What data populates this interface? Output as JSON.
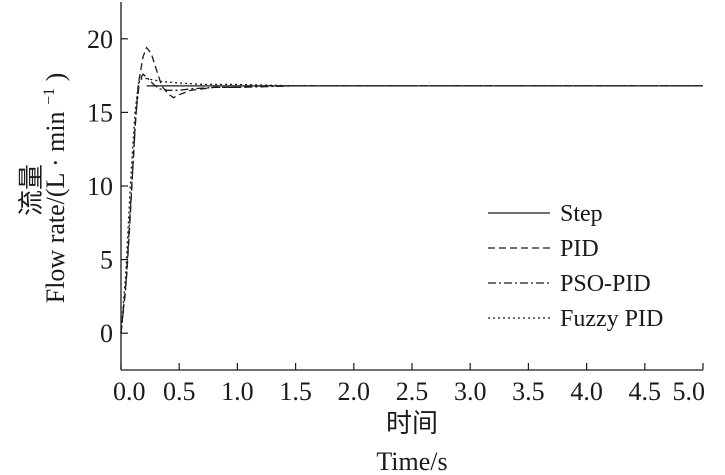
{
  "chart_data": {
    "type": "line",
    "xlabel_cn": "时间",
    "xlabel_en": "Time/s",
    "ylabel_cn": "流量",
    "ylabel_en_main": "Flow rate/(L · min",
    "ylabel_en_sup": "−1",
    "ylabel_en_close": ")",
    "xlim": [
      0,
      5
    ],
    "ylim": [
      -2.5,
      22.5
    ],
    "x_ticks": [
      "0.0",
      "0.5",
      "1.0",
      "1.5",
      "2.0",
      "2.5",
      "3.0",
      "3.5",
      "4.0",
      "4.5",
      "5.0"
    ],
    "y_ticks": [
      "0",
      "5",
      "10",
      "15",
      "20"
    ],
    "grid": false,
    "legend_position": "right-center",
    "series": [
      {
        "name": "Step",
        "style": "solid",
        "x": [
          0.22,
          5.0
        ],
        "y": [
          16.8,
          16.8
        ]
      },
      {
        "name": "PID",
        "style": "dashed",
        "x": [
          0.0,
          0.05,
          0.08,
          0.12,
          0.15,
          0.19,
          0.22,
          0.26,
          0.3,
          0.35,
          0.4,
          0.45,
          0.5,
          0.6,
          0.7,
          0.8,
          1.0,
          1.2,
          1.5,
          2.0,
          2.5,
          5.0
        ],
        "y": [
          0.0,
          4.0,
          8.0,
          14.0,
          17.0,
          18.8,
          19.4,
          19.0,
          18.0,
          16.8,
          16.3,
          16.0,
          16.2,
          16.5,
          16.6,
          16.7,
          16.7,
          16.8,
          16.8,
          16.8,
          16.8,
          16.8
        ]
      },
      {
        "name": "PSO-PID",
        "style": "dashdot",
        "x": [
          0.0,
          0.04,
          0.07,
          0.1,
          0.13,
          0.16,
          0.19,
          0.23,
          0.28,
          0.33,
          0.4,
          0.5,
          0.6,
          0.8,
          1.0,
          1.5,
          2.0,
          5.0
        ],
        "y": [
          0.0,
          3.0,
          7.0,
          11.0,
          15.0,
          17.2,
          17.6,
          17.3,
          16.9,
          16.6,
          16.5,
          16.5,
          16.6,
          16.7,
          16.7,
          16.8,
          16.8,
          16.8
        ]
      },
      {
        "name": "Fuzzy PID",
        "style": "dotted",
        "x": [
          0.0,
          0.04,
          0.08,
          0.12,
          0.15,
          0.18,
          0.22,
          0.28,
          0.35,
          0.5,
          0.7,
          1.0,
          1.5,
          2.0,
          5.0
        ],
        "y": [
          0.0,
          4.0,
          10.0,
          15.0,
          17.0,
          17.3,
          17.3,
          17.2,
          17.1,
          17.0,
          16.9,
          16.9,
          16.8,
          16.8,
          16.8
        ]
      }
    ]
  }
}
